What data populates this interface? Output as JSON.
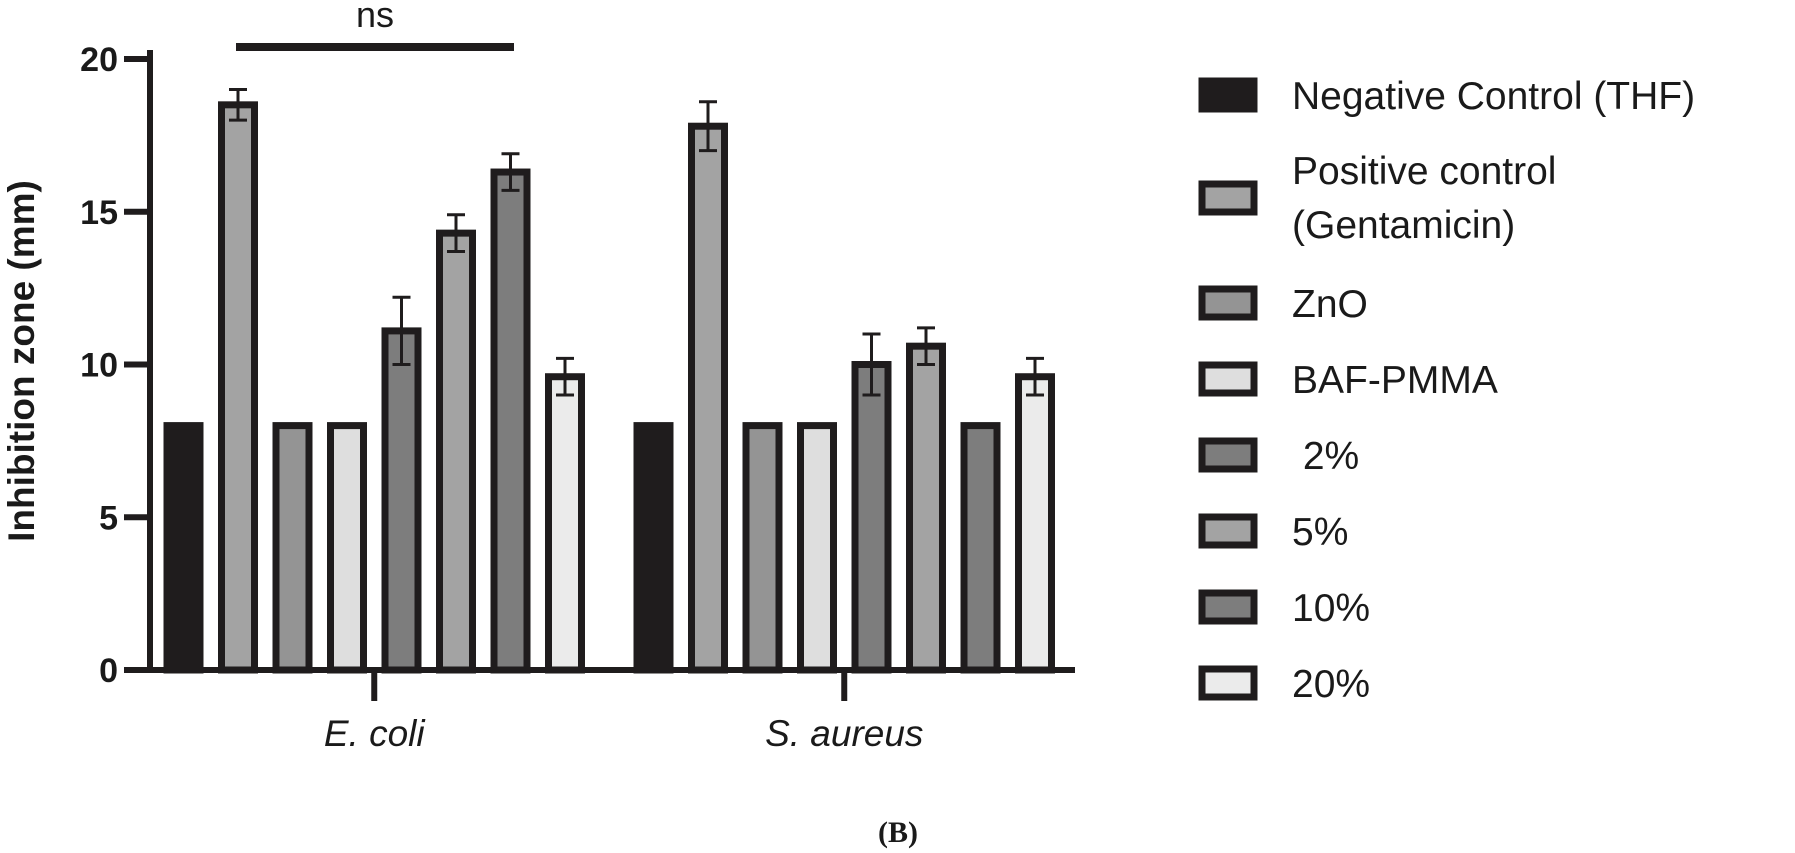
{
  "chart_data": {
    "type": "bar",
    "ylabel": "Inhibition zone (mm)",
    "ylim": [
      0,
      20
    ],
    "yticks": [
      "0",
      "5",
      "10",
      "15",
      "20"
    ],
    "categories": [
      "E. coli",
      "S. aureus"
    ],
    "series": [
      {
        "name": "Negative Control (THF)",
        "color": "#1f1c1d",
        "values": [
          8,
          8
        ],
        "errors": [
          0,
          0
        ]
      },
      {
        "name": "Positive control (Gentamicin)",
        "color": "#a3a3a3",
        "values": [
          18.5,
          17.8
        ],
        "errors": [
          0.5,
          0.8
        ]
      },
      {
        "name": "ZnO",
        "color": "#949494",
        "values": [
          8,
          8
        ],
        "errors": [
          0,
          0
        ]
      },
      {
        "name": "BAF-PMMA",
        "color": "#dedede",
        "values": [
          8,
          8
        ],
        "errors": [
          0,
          0
        ]
      },
      {
        "name": " 2%",
        "color": "#7d7d7d",
        "values": [
          11.1,
          10
        ],
        "errors": [
          1.1,
          1
        ]
      },
      {
        "name": "5%",
        "color": "#a3a3a3",
        "values": [
          14.3,
          10.6
        ],
        "errors": [
          0.6,
          0.6
        ]
      },
      {
        "name": "10%",
        "color": "#7d7d7d",
        "values": [
          16.3,
          8
        ],
        "errors": [
          0.6,
          0
        ]
      },
      {
        "name": "20%",
        "color": "#ebebeb",
        "values": [
          9.6,
          9.6
        ],
        "errors": [
          0.6,
          0.6
        ]
      }
    ],
    "legend_labels": [
      "Negative Control (THF)",
      "Positive control",
      "(Gentamicin)",
      "ZnO",
      "BAF-PMMA",
      " 2%",
      "5%",
      "10%",
      "20%"
    ],
    "annotations": [
      {
        "text": "ns",
        "type": "bracket",
        "category": "E. coli",
        "from_series": 1,
        "to_series": 6
      }
    ],
    "legend_position": "right"
  },
  "figure": {
    "panel_label": "(B)"
  }
}
